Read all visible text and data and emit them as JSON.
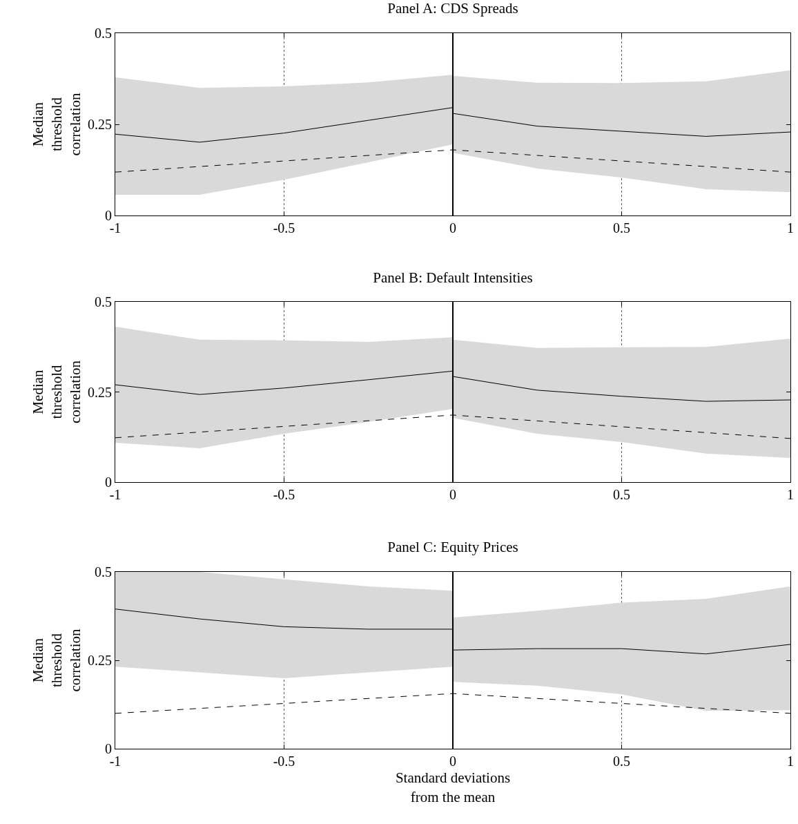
{
  "chart_data": [
    {
      "type": "line",
      "title": "Panel A: CDS Spreads",
      "ylabel": "Median\nthreshold\ncorrelation",
      "xlim": [
        -1,
        1
      ],
      "xticks": [
        -1,
        -0.5,
        0,
        0.5,
        1
      ],
      "ylim": [
        0,
        0.5
      ],
      "yticks": [
        0,
        0.25,
        0.5
      ],
      "grid": "x",
      "marker": "none",
      "ref_lines": [
        {
          "axis": "x",
          "value": 0,
          "color": "#000000"
        }
      ],
      "series": [
        {
          "color": "#000000",
          "line_style": "solid",
          "x": [
            -1,
            -0.75,
            -0.5,
            -0.25,
            0
          ],
          "values": [
            0.223,
            0.201,
            0.226,
            0.261,
            0.296
          ],
          "lower": [
            0.057,
            0.057,
            0.098,
            0.146,
            0.195
          ],
          "upper": [
            0.379,
            0.35,
            0.354,
            0.365,
            0.386
          ]
        },
        {
          "color": "#000000",
          "line_style": "solid",
          "x": [
            0,
            0.25,
            0.5,
            0.75,
            1
          ],
          "values": [
            0.28,
            0.245,
            0.231,
            0.217,
            0.229
          ],
          "lower": [
            0.172,
            0.129,
            0.104,
            0.072,
            0.064
          ],
          "upper": [
            0.383,
            0.364,
            0.363,
            0.368,
            0.398
          ]
        },
        {
          "color": "#000000",
          "line_style": "dashed",
          "x": [
            -1,
            0,
            1
          ],
          "values": [
            0.119,
            0.18,
            0.119
          ]
        }
      ]
    },
    {
      "type": "line",
      "title": "Panel B: Default Intensities",
      "ylabel": "Median\nthreshold\ncorrelation",
      "xlim": [
        -1,
        1
      ],
      "xticks": [
        -1,
        -0.5,
        0,
        0.5,
        1
      ],
      "ylim": [
        0,
        0.5
      ],
      "yticks": [
        0,
        0.25,
        0.5
      ],
      "grid": "x",
      "marker": "none",
      "ref_lines": [
        {
          "axis": "x",
          "value": 0,
          "color": "#000000"
        }
      ],
      "series": [
        {
          "color": "#000000",
          "line_style": "solid",
          "x": [
            -1,
            -0.75,
            -0.5,
            -0.25,
            0
          ],
          "values": [
            0.27,
            0.243,
            0.261,
            0.284,
            0.308
          ],
          "lower": [
            0.109,
            0.094,
            0.134,
            0.167,
            0.203
          ],
          "upper": [
            0.431,
            0.395,
            0.393,
            0.389,
            0.402
          ]
        },
        {
          "color": "#000000",
          "line_style": "solid",
          "x": [
            0,
            0.25,
            0.5,
            0.75,
            1
          ],
          "values": [
            0.293,
            0.255,
            0.238,
            0.224,
            0.228
          ],
          "lower": [
            0.178,
            0.134,
            0.111,
            0.079,
            0.067
          ],
          "upper": [
            0.395,
            0.372,
            0.374,
            0.375,
            0.398
          ]
        },
        {
          "color": "#000000",
          "line_style": "dashed",
          "x": [
            -1,
            0,
            1
          ],
          "values": [
            0.123,
            0.186,
            0.121
          ]
        }
      ]
    },
    {
      "type": "line",
      "title": "Panel C: Equity Prices",
      "xlabel": "Standard deviations\nfrom the mean",
      "ylabel": "Median\nthreshold\ncorrelation",
      "xlim": [
        -1,
        1
      ],
      "xticks": [
        -1,
        -0.5,
        0,
        0.5,
        1
      ],
      "ylim": [
        0,
        0.5
      ],
      "yticks": [
        0,
        0.25,
        0.5
      ],
      "grid": "x",
      "marker": "none",
      "ref_lines": [
        {
          "axis": "x",
          "value": 0,
          "color": "#000000"
        }
      ],
      "series": [
        {
          "color": "#000000",
          "line_style": "solid",
          "x": [
            -1,
            -0.75,
            -0.5,
            -0.25,
            0
          ],
          "values": [
            0.395,
            0.367,
            0.345,
            0.338,
            0.338
          ],
          "lower": [
            0.232,
            0.216,
            0.199,
            0.216,
            0.232
          ],
          "upper": [
            0.5,
            0.5,
            0.479,
            0.459,
            0.447
          ]
        },
        {
          "color": "#000000",
          "line_style": "solid",
          "x": [
            0,
            0.25,
            0.5,
            0.75,
            1
          ],
          "values": [
            0.279,
            0.283,
            0.283,
            0.268,
            0.295
          ],
          "lower": [
            0.189,
            0.178,
            0.154,
            0.107,
            0.109
          ],
          "upper": [
            0.371,
            0.39,
            0.413,
            0.424,
            0.459
          ]
        },
        {
          "color": "#000000",
          "line_style": "dashed",
          "x": [
            -1,
            0,
            1
          ],
          "values": [
            0.1,
            0.156,
            0.1
          ]
        }
      ]
    }
  ]
}
